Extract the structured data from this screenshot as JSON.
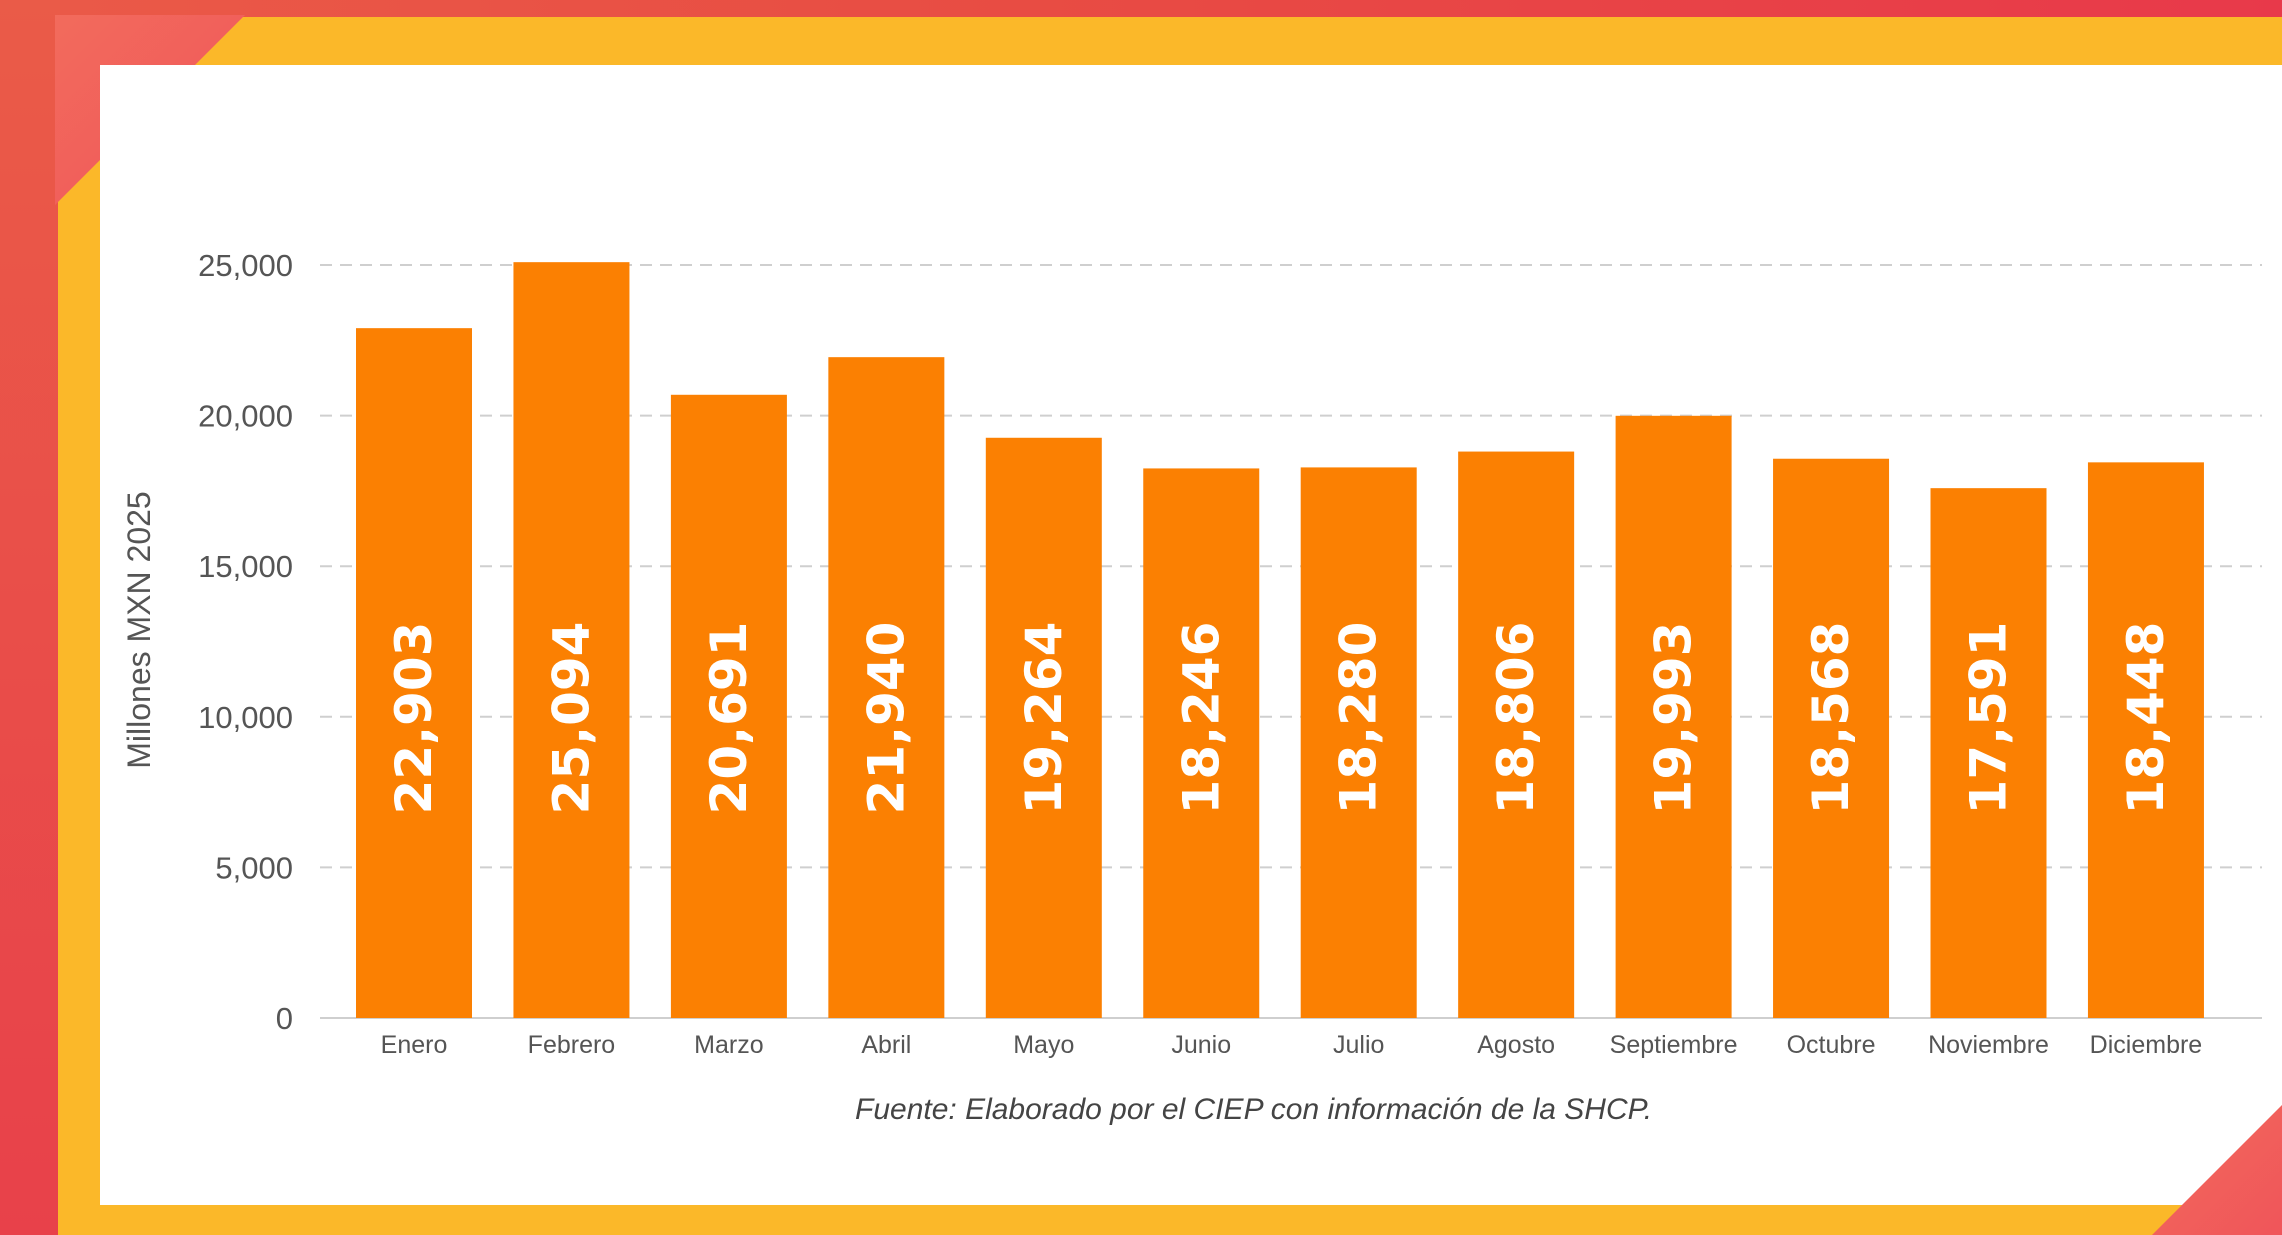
{
  "chart_data": {
    "type": "bar",
    "title": "",
    "xlabel": "",
    "ylabel": "Millones MXN 2025",
    "ylim": [
      0,
      25000
    ],
    "yticks": [
      0,
      5000,
      10000,
      15000,
      20000,
      25000
    ],
    "ytick_labels": [
      "0",
      "5,000",
      "10,000",
      "15,000",
      "20,000",
      "25,000"
    ],
    "grid": "horizontal dashed",
    "legend": "none",
    "categories": [
      "Enero",
      "Febrero",
      "Marzo",
      "Abril",
      "Mayo",
      "Junio",
      "Julio",
      "Agosto",
      "Septiembre",
      "Octubre",
      "Noviembre",
      "Diciembre"
    ],
    "values": [
      22903,
      25094,
      20691,
      21940,
      19264,
      18246,
      18280,
      18806,
      19993,
      18568,
      17591,
      18448
    ],
    "value_labels": [
      "22,903",
      "25,094",
      "20,691",
      "21,940",
      "19,264",
      "18,246",
      "18,280",
      "18,806",
      "19,993",
      "18,568",
      "17,591",
      "18,448"
    ],
    "bar_color": "#fb8002"
  },
  "source": "Fuente: Elaborado por el CIEP con información de la SHCP.",
  "colors": {
    "frame": "#e84c43",
    "panel": "#fbb829",
    "card": "#ffffff",
    "bar": "#fb8002",
    "bar_label": "#ffffff",
    "axis_text": "#555555"
  }
}
